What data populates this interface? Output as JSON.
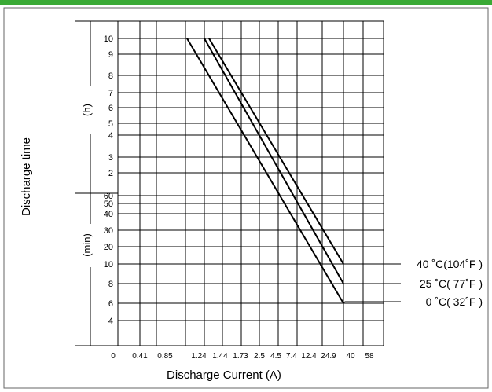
{
  "chart_data": {
    "type": "line",
    "title": "",
    "xlabel": "Discharge Current (A)",
    "ylabel": "Discharge time",
    "colors": {
      "accent_bar": "#3aaa35",
      "border": "#666666",
      "grid": "#000000",
      "line": "#000000"
    },
    "y_hour_unit": "(h)",
    "y_min_unit": "(min)",
    "x_ticks": [
      "0",
      "0.41",
      "0.85",
      "1.24",
      "1.44",
      "1.73",
      "2.5",
      "4.5",
      "7.4",
      "12.4",
      "24.9",
      "40",
      "58"
    ],
    "y_hour_ticks": [
      "10",
      "9",
      "8",
      "7",
      "6",
      "5",
      "4",
      "3",
      "2"
    ],
    "y_min_ticks": [
      "60",
      "50",
      "40",
      "30",
      "20",
      "10",
      "8",
      "6",
      "4"
    ],
    "series": [
      {
        "name": "40 ˚C(104˚F )",
        "values": [
          {
            "current": "1.44",
            "time": "10 h"
          },
          {
            "current": "40",
            "time": "10 min"
          }
        ]
      },
      {
        "name": "25 ˚C( 77˚F )",
        "values": [
          {
            "current": "1.24",
            "time": "10 h"
          },
          {
            "current": "40",
            "time": "8 min"
          }
        ]
      },
      {
        "name": "0 ˚C( 32˚F )",
        "values": [
          {
            "current": "0.85",
            "time": "10 h"
          },
          {
            "current": "40",
            "time": "6 min"
          }
        ]
      }
    ]
  }
}
